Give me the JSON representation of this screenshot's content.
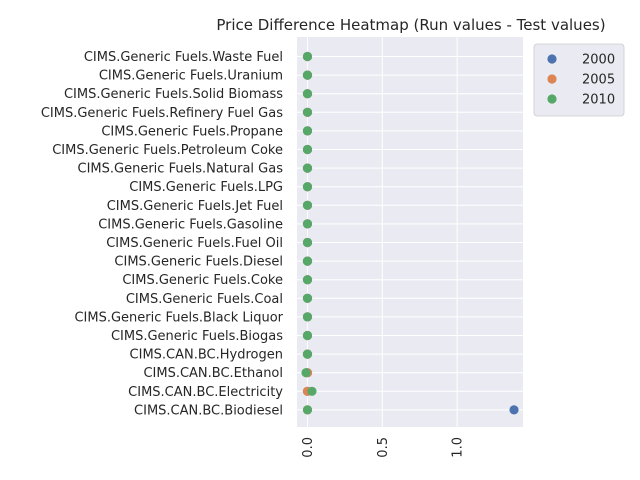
{
  "chart_data": {
    "type": "scatter",
    "title": "Price Difference Heatmap (Run values - Test values)",
    "xlabel": "",
    "ylabel": "",
    "xlim": [
      -0.07,
      1.44
    ],
    "xticks": [
      0.0,
      0.5,
      1.0
    ],
    "xtick_labels": [
      "0.0",
      "0.5",
      "1.0"
    ],
    "grid": true,
    "legend_position": "upper-left outside right",
    "categories": [
      "CIMS.Generic Fuels.Waste Fuel",
      "CIMS.Generic Fuels.Uranium",
      "CIMS.Generic Fuels.Solid Biomass",
      "CIMS.Generic Fuels.Refinery Fuel Gas",
      "CIMS.Generic Fuels.Propane",
      "CIMS.Generic Fuels.Petroleum Coke",
      "CIMS.Generic Fuels.Natural Gas",
      "CIMS.Generic Fuels.LPG",
      "CIMS.Generic Fuels.Jet Fuel",
      "CIMS.Generic Fuels.Gasoline",
      "CIMS.Generic Fuels.Fuel Oil",
      "CIMS.Generic Fuels.Diesel",
      "CIMS.Generic Fuels.Coke",
      "CIMS.Generic Fuels.Coal",
      "CIMS.Generic Fuels.Black Liquor",
      "CIMS.Generic Fuels.Biogas",
      "CIMS.CAN.BC.Hydrogen",
      "CIMS.CAN.BC.Ethanol",
      "CIMS.CAN.BC.Electricity",
      "CIMS.CAN.BC.Biodiesel"
    ],
    "series": [
      {
        "name": "2000",
        "color": "#4c72b0",
        "values": [
          0,
          0,
          0,
          0,
          0,
          0,
          0,
          0,
          0,
          0,
          0,
          0,
          0,
          0,
          0,
          0,
          0,
          0.0,
          0.0,
          1.38
        ]
      },
      {
        "name": "2005",
        "color": "#dd8452",
        "values": [
          0,
          0,
          0,
          0,
          0,
          0,
          0,
          0,
          0,
          0,
          0,
          0,
          0,
          0,
          0,
          0,
          0,
          0.0,
          0.0,
          0.0
        ]
      },
      {
        "name": "2010",
        "color": "#55a868",
        "values": [
          0,
          0,
          0,
          0,
          0,
          0,
          0,
          0,
          0,
          0,
          0,
          0,
          0,
          0,
          0,
          0,
          0,
          -0.01,
          0.03,
          0.0
        ]
      }
    ]
  }
}
